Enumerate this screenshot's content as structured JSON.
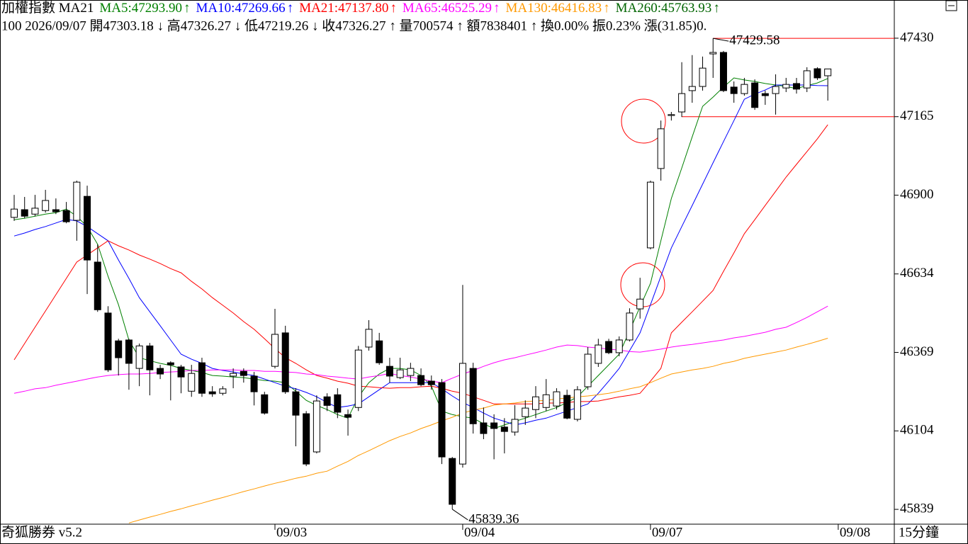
{
  "chart_data": {
    "type": "candlestick",
    "title": "加權指數 MA21",
    "header_info": "100 2026/09/07 開47303.18 ↓ 高47326.27 ↓ 低47219.26 ↓ 收47326.27 ↑ 量700574 ↑ 額7838401 ↑ 換0.00% 振0.23% 漲(31.85)0.",
    "categories": [
      null,
      null,
      null,
      null,
      null,
      null,
      null,
      null,
      null,
      null,
      null,
      null,
      null,
      null,
      null,
      null,
      null,
      null,
      null,
      null,
      null,
      null,
      null,
      null,
      null,
      "09/03",
      null,
      null,
      null,
      null,
      null,
      null,
      null,
      null,
      null,
      null,
      null,
      null,
      null,
      null,
      null,
      null,
      null,
      "09/04",
      null,
      null,
      null,
      null,
      null,
      null,
      null,
      null,
      null,
      null,
      null,
      null,
      null,
      null,
      null,
      null,
      null,
      "09/07",
      null,
      null,
      null,
      null,
      null,
      null,
      null,
      null,
      null,
      null,
      null,
      null,
      null,
      null,
      null,
      null,
      null,
      "09/08"
    ],
    "open": [
      46825,
      46851,
      46836,
      46848,
      46851,
      46848,
      46815,
      46896,
      46674,
      46502,
      46408,
      46411,
      46315,
      46391,
      46315,
      46334,
      46320,
      46238,
      46334,
      46236,
      46231,
      46289,
      46305,
      46289,
      46226,
      46322,
      46435,
      46236,
      46162,
      46033,
      46219,
      46226,
      46159,
      46183,
      46387,
      46408,
      46322,
      46284,
      46291,
      46291,
      46272,
      46267,
      46011,
      45992,
      46315,
      46131,
      46131,
      46117,
      46100,
      46152,
      46176,
      46183,
      46188,
      46224,
      46143,
      46253,
      46332,
      46406,
      46368,
      46411,
      46516,
      46722,
      46990,
      47169,
      47181,
      47253,
      47267,
      47377,
      47382,
      47265,
      47243,
      47279,
      47243,
      47243,
      47262,
      47277,
      47262,
      47327,
      47303.18,
      null
    ],
    "high": [
      46901,
      46894,
      46901,
      46918,
      46889,
      46877,
      46949,
      46932,
      46734,
      46525,
      46415,
      46415,
      46399,
      46401,
      46327,
      46339,
      46327,
      46327,
      46351,
      46255,
      46255,
      46315,
      46315,
      46303,
      46236,
      46516,
      46459,
      46248,
      46171,
      46224,
      46231,
      46248,
      46176,
      46391,
      46478,
      46435,
      46351,
      46351,
      46334,
      46315,
      46291,
      46279,
      46016,
      46597,
      46334,
      46183,
      46160,
      46147,
      46191,
      46207,
      46255,
      46279,
      46248,
      46243,
      46255,
      46387,
      46415,
      46415,
      46423,
      46518,
      46621,
      46949,
      47152,
      47181,
      47349,
      47373,
      47368,
      47429.58,
      47387,
      47284,
      47296,
      47291,
      47253,
      47308,
      47296,
      47296,
      47332,
      47332,
      47326.27,
      null
    ],
    "low": [
      46813,
      46822,
      46829,
      46841,
      46836,
      46805,
      46746,
      46566,
      46506,
      46303,
      46291,
      46243,
      46255,
      46224,
      46279,
      46207,
      46231,
      46219,
      46219,
      46219,
      46224,
      46248,
      46267,
      46190,
      46159,
      46315,
      46229,
      46052,
      45985,
      46028,
      46171,
      46147,
      46088,
      46171,
      46375,
      46327,
      46267,
      46279,
      46272,
      46255,
      46243,
      45992,
      45839.36,
      45980,
      46095,
      46076,
      46008,
      46028,
      46088,
      46124,
      46147,
      46171,
      46176,
      46143,
      46136,
      46243,
      46320,
      46363,
      46356,
      46406,
      46483,
      46717,
      46949,
      47152,
      47164,
      47212,
      47253,
      47296,
      47248,
      47212,
      47236,
      47188,
      47205,
      47172,
      47248,
      47243,
      47248,
      47289,
      47219.26,
      null
    ],
    "close": [
      46853,
      46829,
      46856,
      46882,
      46844,
      46810,
      46944,
      46681,
      46513,
      46310,
      46351,
      46332,
      46391,
      46310,
      46296,
      46327,
      46286,
      46298,
      46231,
      46229,
      46246,
      46298,
      46291,
      46236,
      46164,
      46430,
      46236,
      46157,
      45992,
      46205,
      46190,
      46167,
      46150,
      46377,
      46447,
      46334,
      46289,
      46310,
      46315,
      46260,
      46260,
      46016,
      45856,
      46332,
      46128,
      46095,
      46112,
      46102,
      46143,
      46181,
      46219,
      46226,
      46236,
      46147,
      46243,
      46363,
      46394,
      46368,
      46411,
      46502,
      46549,
      46944,
      47124,
      47172,
      47243,
      47267,
      47329,
      47382,
      47253,
      47243,
      47274,
      47196,
      47236,
      47267,
      47274,
      47258,
      47320,
      47296,
      47326.27,
      null
    ],
    "up_color": "#ffffff",
    "down_color": "#000000",
    "series": [
      {
        "label": "MA5:47293.90",
        "arrow": "↑",
        "color": "#008000",
        "values": [
          46817,
          46822,
          46829,
          46836,
          46841,
          46853,
          46829,
          46794,
          46734,
          46626,
          46530,
          46411,
          46351,
          46341,
          46332,
          46325,
          46315,
          46308,
          46301,
          46291,
          46289,
          46286,
          46284,
          46279,
          46274,
          46272,
          46267,
          46238,
          46207,
          46190,
          46176,
          46159,
          46147,
          46219,
          46267,
          46296,
          46315,
          46315,
          46310,
          46291,
          46255,
          46171,
          46159,
          46152,
          46147,
          46128,
          46112,
          46124,
          46136,
          46147,
          46159,
          46171,
          46183,
          46200,
          46219,
          46255,
          46291,
          46327,
          46363,
          46442,
          46523,
          46602,
          46746,
          46889,
          46992,
          47097,
          47200,
          47231,
          47265,
          47296,
          47289,
          47284,
          47277,
          47272,
          47267,
          47260,
          47270,
          47279,
          47293.9,
          null
        ]
      },
      {
        "label": "MA10:47269.66",
        "arrow": "↑",
        "color": "#0000ff",
        "values": [
          46762,
          46772,
          46784,
          46794,
          46806,
          46818,
          46813,
          46794,
          46770,
          46746,
          46681,
          46619,
          46554,
          46506,
          46459,
          46411,
          46363,
          46346,
          46332,
          46315,
          46308,
          46303,
          46296,
          46291,
          46279,
          46267,
          46255,
          46246,
          46234,
          46219,
          46200,
          46183,
          46188,
          46195,
          46219,
          46243,
          46267,
          46267,
          46267,
          46267,
          46267,
          46246,
          46222,
          46200,
          46183,
          46164,
          46147,
          46136,
          46124,
          46131,
          46140,
          46147,
          46159,
          46171,
          46183,
          46195,
          46231,
          46272,
          46315,
          46375,
          46435,
          46530,
          46626,
          46722,
          46794,
          46865,
          46937,
          47009,
          47081,
          47152,
          47224,
          47241,
          47255,
          47272,
          47272,
          47272,
          47272,
          47270,
          47269.66,
          null
        ]
      },
      {
        "label": "MA21:47137.80",
        "arrow": "↑",
        "color": "#ff0000",
        "values": [
          46344,
          46399,
          46454,
          46509,
          46564,
          46619,
          46674,
          46698,
          46722,
          46746,
          46729,
          46715,
          46698,
          46684,
          46669,
          46652,
          46638,
          46609,
          46583,
          46554,
          46528,
          46502,
          46473,
          46447,
          46415,
          46382,
          46351,
          46332,
          46310,
          46291,
          46282,
          46272,
          46265,
          46255,
          46253,
          46250,
          46248,
          46250,
          46250,
          46253,
          46255,
          46248,
          46238,
          46231,
          46219,
          46207,
          46195,
          46195,
          46195,
          46195,
          46195,
          46198,
          46198,
          46200,
          46203,
          46203,
          46205,
          46212,
          46219,
          46224,
          46231,
          46272,
          46315,
          46435,
          46471,
          46506,
          46542,
          46578,
          46643,
          46705,
          46770,
          46817,
          46865,
          46913,
          46961,
          47004,
          47047,
          47090,
          47137.8,
          null
        ]
      },
      {
        "label": "MA65:46525.29",
        "arrow": "↑",
        "color": "#ff00ff",
        "values": [
          46231,
          46238,
          46246,
          46250,
          46258,
          46265,
          46272,
          46279,
          46286,
          46291,
          46294,
          46296,
          46296,
          46298,
          46301,
          46303,
          46305,
          46308,
          46308,
          46310,
          46310,
          46310,
          46308,
          46308,
          46305,
          46305,
          46303,
          46301,
          46296,
          46294,
          46289,
          46286,
          46282,
          46279,
          46286,
          46291,
          46298,
          46291,
          46286,
          46279,
          46272,
          46267,
          46282,
          46296,
          46308,
          46322,
          46334,
          46344,
          46351,
          46360,
          46368,
          46377,
          46387,
          46394,
          46392,
          46387,
          46384,
          46380,
          46377,
          46372,
          46370,
          46375,
          46380,
          46387,
          46392,
          46396,
          46401,
          46406,
          46411,
          46418,
          46423,
          46430,
          46437,
          46447,
          46454,
          46470,
          46487,
          46506,
          46525.29,
          null
        ]
      },
      {
        "label": "MA130:46416.83",
        "arrow": "↑",
        "color": "#ff9900",
        "values": [
          null,
          null,
          null,
          null,
          null,
          null,
          null,
          null,
          null,
          null,
          null,
          45793,
          45803,
          45813,
          45822,
          45832,
          45841,
          45851,
          45860,
          45870,
          45879,
          45889,
          45899,
          45908,
          45918,
          45927,
          45935,
          45944,
          45951,
          45961,
          45968,
          45985,
          46001,
          46021,
          46037,
          46054,
          46071,
          46085,
          46097,
          46112,
          46124,
          46138,
          46150,
          46164,
          46174,
          46181,
          46191,
          46195,
          46198,
          46203,
          46205,
          46207,
          46212,
          46215,
          46219,
          46222,
          46226,
          46231,
          46238,
          46246,
          46253,
          46267,
          46282,
          46296,
          46303,
          46310,
          46315,
          46322,
          46332,
          46339,
          46349,
          46356,
          46363,
          46370,
          46377,
          46387,
          46396,
          46406,
          46416.83,
          null
        ]
      },
      {
        "label": "MA260:45763.93",
        "arrow": "↑",
        "color": "#006400"
      }
    ],
    "ylim": [
      45789,
      47559
    ],
    "yticks": [
      47430,
      47165,
      46900,
      46634,
      46369,
      46104,
      45839
    ],
    "annotations": [
      {
        "text": "47429.58",
        "value": 47429.58,
        "index": 67
      },
      {
        "text": "45839.36",
        "value": 45839.36,
        "index": 42
      }
    ],
    "reference_lines": [
      {
        "value": 47429.58,
        "start": 67,
        "color": "#ff0000"
      },
      {
        "value": 47165,
        "start": 64,
        "color": "#ff0000"
      }
    ],
    "footer_left": "奇狐勝券 v5.2",
    "period": "15分鐘"
  }
}
